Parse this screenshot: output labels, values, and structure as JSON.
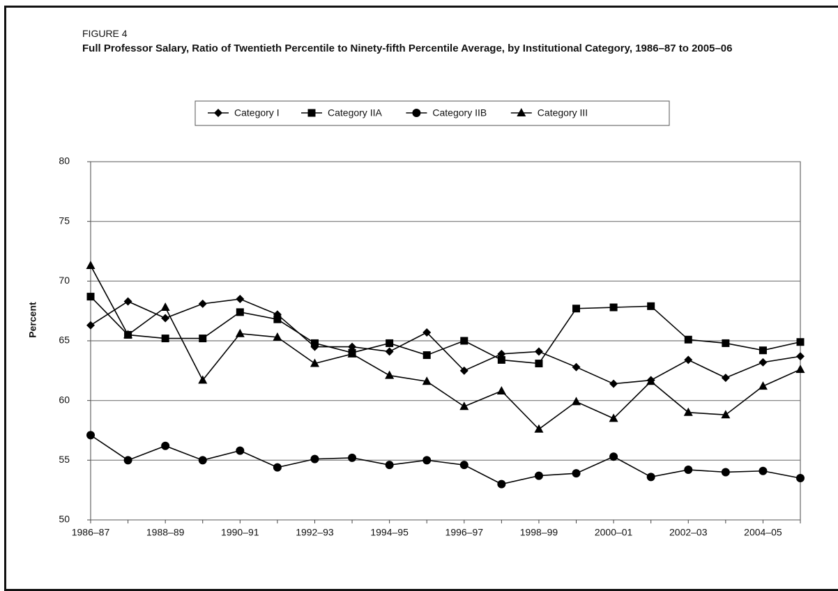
{
  "chart_data": {
    "type": "line",
    "figure_label": "FIGURE 4",
    "title": "Full Professor Salary, Ratio of Twentieth Percentile to Ninety-fifth Percentile Average, by Institutional Category, 1986–87 to 2005–06",
    "y_label": "Percent",
    "categories": [
      "1986–87",
      null,
      "1988–89",
      null,
      "1990–91",
      null,
      "1992–93",
      null,
      "1994–95",
      null,
      "1996–97",
      null,
      "1998–99",
      null,
      "2000–01",
      null,
      "2002–03",
      null,
      "2004–05",
      null
    ],
    "ylim": [
      50,
      80
    ],
    "yticks": [
      50,
      55,
      60,
      65,
      70,
      75,
      80
    ],
    "grid": true,
    "legend": "top",
    "series": [
      {
        "name": "Category I",
        "color": "#000000",
        "marker": "diamond",
        "values": [
          66.3,
          68.3,
          66.9,
          68.1,
          68.5,
          67.2,
          64.5,
          64.5,
          64.1,
          65.7,
          62.5,
          63.9,
          64.1,
          62.8,
          61.4,
          61.7,
          63.4,
          61.9,
          63.2,
          63.7
        ]
      },
      {
        "name": "Category IIA",
        "color": "#000000",
        "marker": "square",
        "values": [
          68.7,
          65.5,
          65.2,
          65.2,
          67.4,
          66.8,
          64.8,
          64.0,
          64.8,
          63.8,
          65.0,
          63.4,
          63.1,
          67.7,
          67.8,
          67.9,
          65.1,
          64.8,
          64.2,
          64.9
        ]
      },
      {
        "name": "Category IIB",
        "color": "#000000",
        "marker": "circle",
        "values": [
          57.1,
          55.0,
          56.2,
          55.0,
          55.8,
          54.4,
          55.1,
          55.2,
          54.6,
          55.0,
          54.6,
          53.0,
          53.7,
          53.9,
          55.3,
          53.6,
          54.2,
          54.0,
          54.1,
          53.5
        ]
      },
      {
        "name": "Category III",
        "color": "#000000",
        "marker": "triangle",
        "values": [
          71.3,
          65.5,
          67.8,
          61.7,
          65.6,
          65.3,
          63.1,
          63.9,
          62.1,
          61.6,
          59.5,
          60.8,
          57.6,
          59.9,
          58.5,
          61.6,
          59.0,
          58.8,
          61.2,
          62.6
        ]
      }
    ]
  }
}
